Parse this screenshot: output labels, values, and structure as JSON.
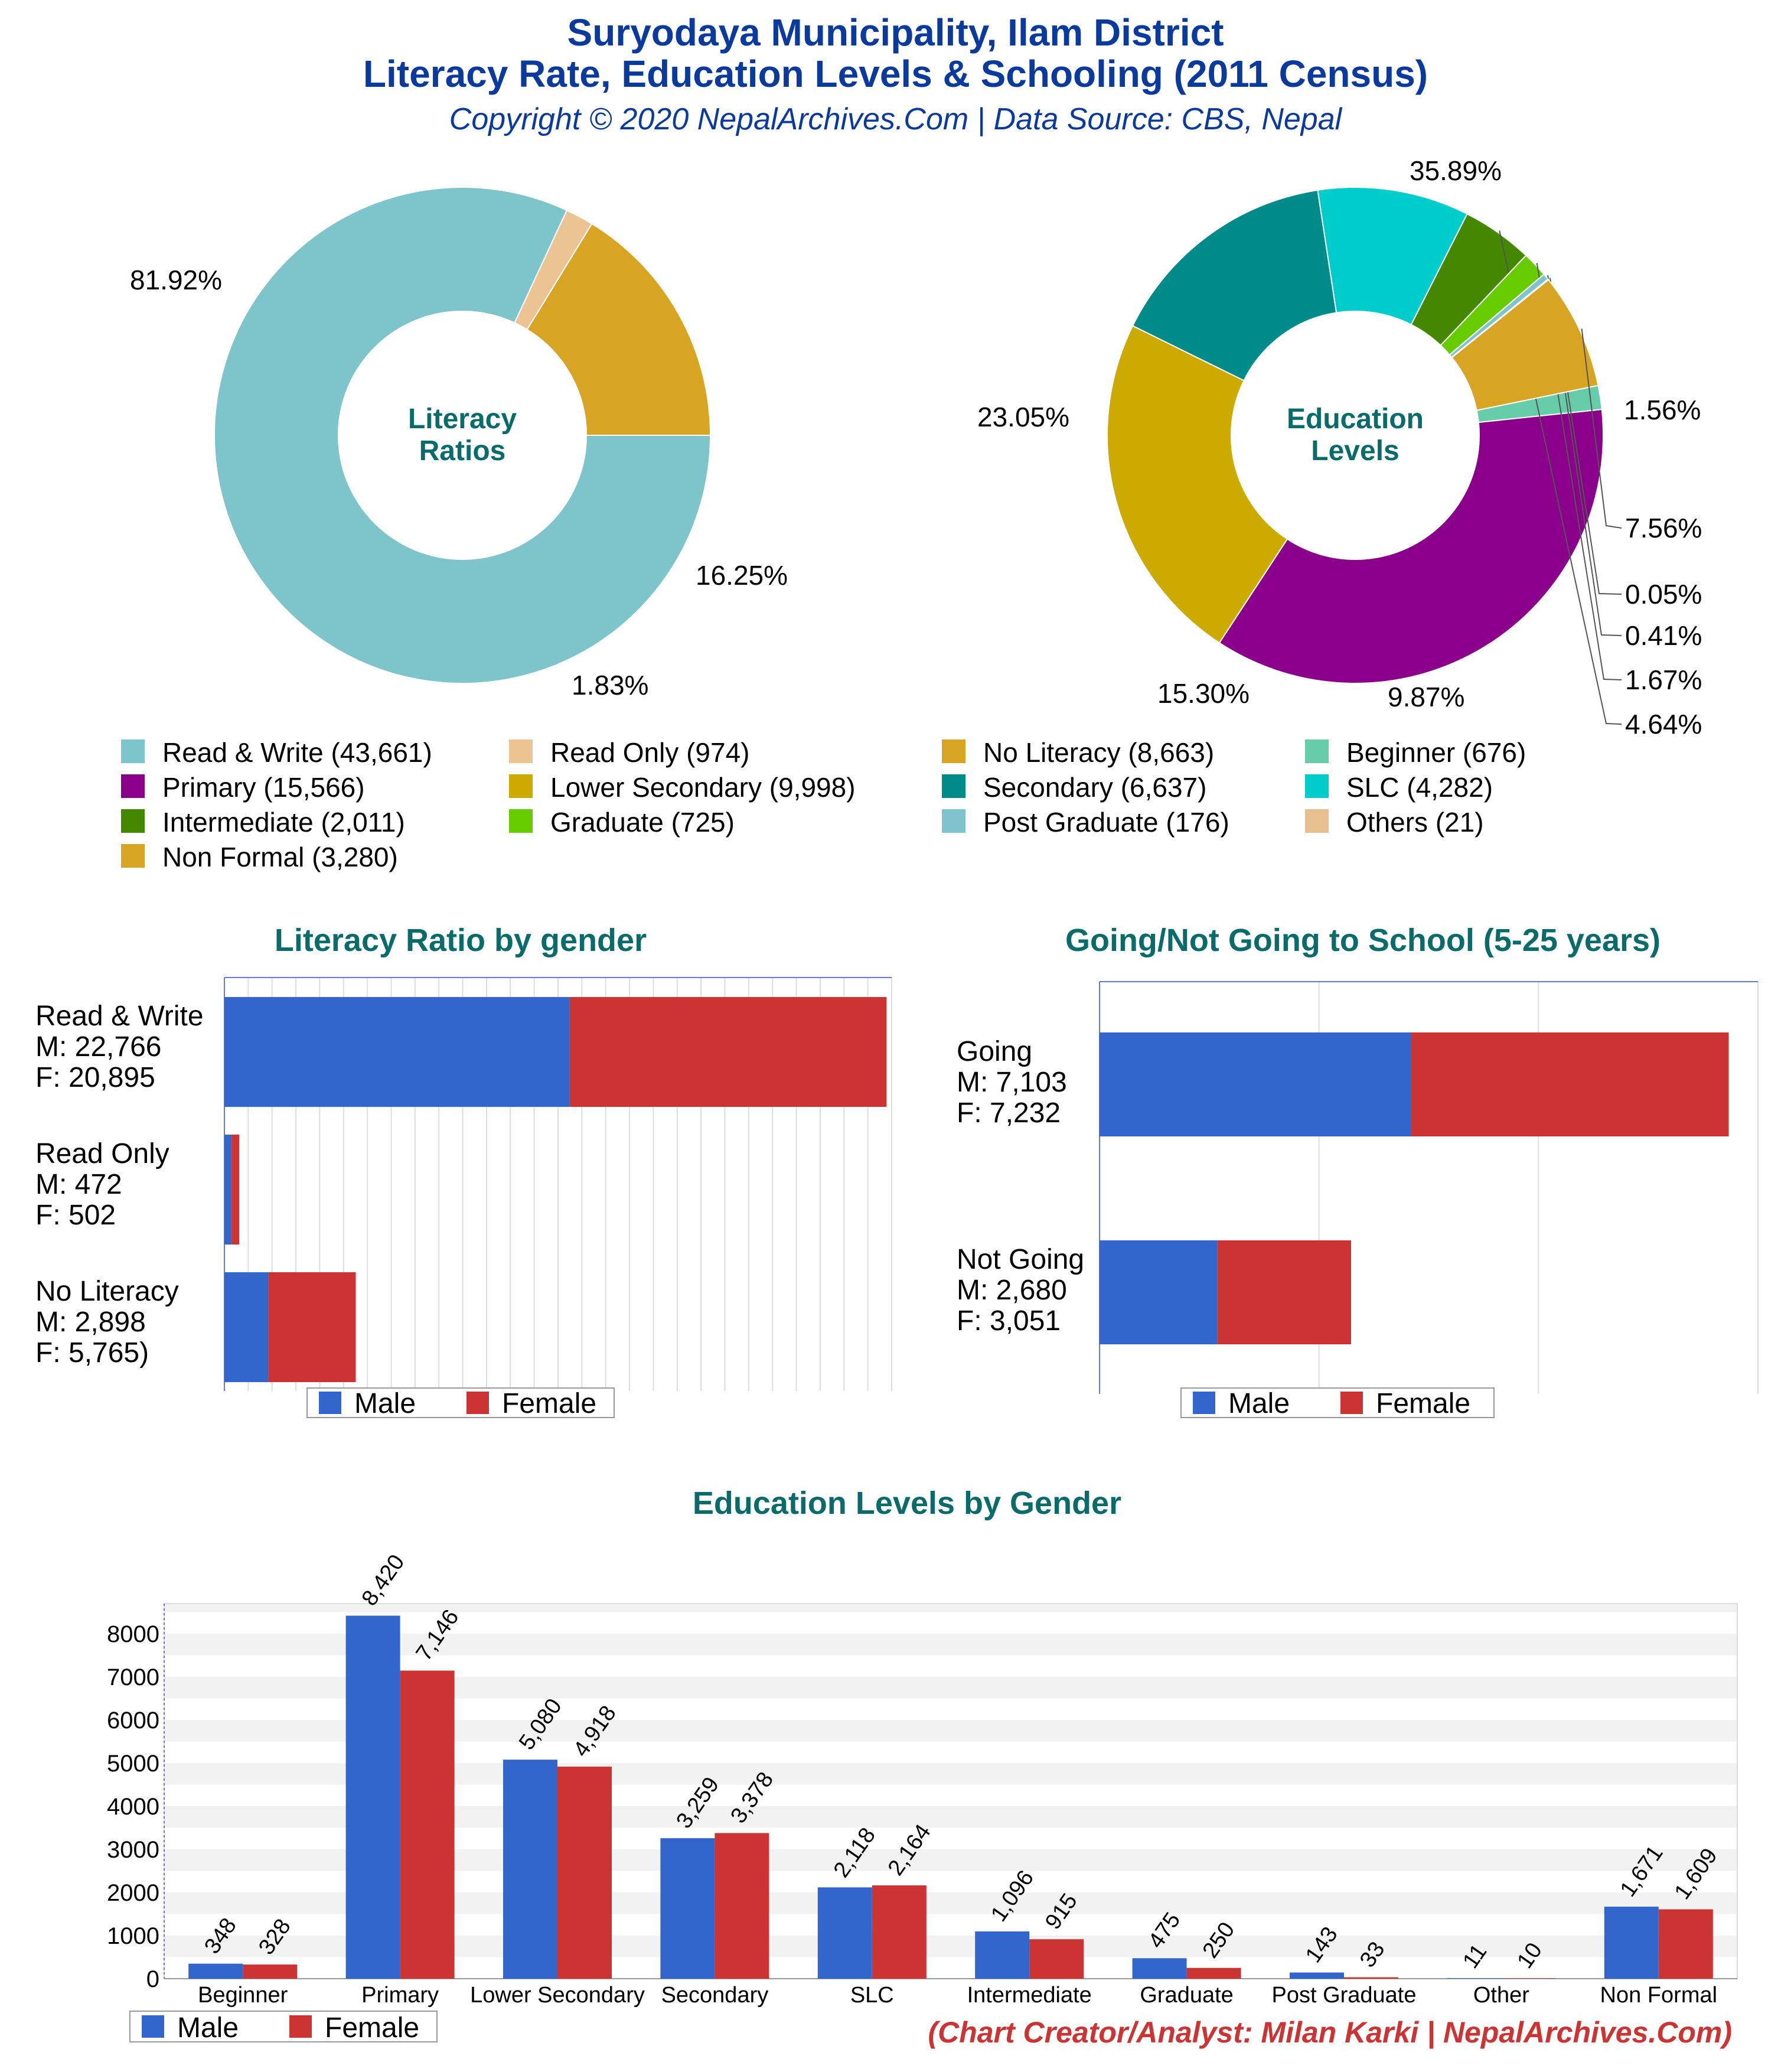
{
  "header": {
    "title_line1": "Suryodaya Municipality, Ilam District",
    "title_line2": "Literacy Rate, Education Levels & Schooling (2011 Census)",
    "subtitle": "Copyright © 2020 NepalArchives.Com | Data Source: CBS, Nepal"
  },
  "credit": "(Chart Creator/Analyst: Milan Karki | NepalArchives.Com)",
  "chart_data": [
    {
      "type": "pie",
      "center_label": [
        "Literacy",
        "Ratios"
      ],
      "slices": [
        {
          "label": "Read & Write",
          "value": 43661,
          "percent_label": "81.92%",
          "color": "#7dc4cb"
        },
        {
          "label": "Read Only",
          "value": 974,
          "percent_label": "1.83%",
          "color": "#ecc393"
        },
        {
          "label": "No Literacy",
          "value": 8663,
          "percent_label": "16.25%",
          "color": "#d8a424"
        }
      ]
    },
    {
      "type": "pie",
      "center_label": [
        "Education",
        "Levels"
      ],
      "slices": [
        {
          "label": "Beginner",
          "value": 676,
          "percent_label": "1.56%",
          "color": "#66ccaa"
        },
        {
          "label": "Primary",
          "value": 15566,
          "percent_label": "35.89%",
          "color": "#8b008b"
        },
        {
          "label": "Lower Secondary",
          "value": 9998,
          "percent_label": "23.05%",
          "color": "#ccaa00"
        },
        {
          "label": "Secondary",
          "value": 6637,
          "percent_label": "15.30%",
          "color": "#008b8b"
        },
        {
          "label": "SLC",
          "value": 4282,
          "percent_label": "9.87%",
          "color": "#00cccc"
        },
        {
          "label": "Intermediate",
          "value": 2011,
          "percent_label": "4.64%",
          "color": "#448800"
        },
        {
          "label": "Graduate",
          "value": 725,
          "percent_label": "1.67%",
          "color": "#66cc00"
        },
        {
          "label": "Post Graduate",
          "value": 176,
          "percent_label": "0.41%",
          "color": "#7fc4cc"
        },
        {
          "label": "Others",
          "value": 21,
          "percent_label": "0.05%",
          "color": "#e8c090"
        },
        {
          "label": "Non Formal",
          "value": 3280,
          "percent_label": "7.56%",
          "color": "#d8a424"
        }
      ]
    },
    {
      "type": "bar",
      "title": "Literacy Ratio by gender",
      "orientation": "horizontal",
      "stacked": true,
      "categories": [
        {
          "lines": [
            "Read & Write",
            "M: 22,766",
            "F: 20,895"
          ]
        },
        {
          "lines": [
            "Read Only",
            "M: 472",
            "F: 502"
          ]
        },
        {
          "lines": [
            "No Literacy",
            "M: 2,898",
            "F: 5,765)"
          ]
        }
      ],
      "series": [
        {
          "name": "Male",
          "values": [
            22766,
            472,
            2898
          ],
          "color": "#3366cc"
        },
        {
          "name": "Female",
          "values": [
            20895,
            502,
            5765
          ],
          "color": "#cc3333"
        }
      ],
      "xlim": [
        0,
        44000
      ]
    },
    {
      "type": "bar",
      "title": "Going/Not Going to School (5-25 years)",
      "orientation": "horizontal",
      "stacked": true,
      "categories": [
        {
          "lines": [
            "Going",
            "M: 7,103",
            "F: 7,232"
          ]
        },
        {
          "lines": [
            "Not Going",
            "M: 2,680",
            "F: 3,051"
          ]
        }
      ],
      "series": [
        {
          "name": "Male",
          "values": [
            7103,
            2680
          ],
          "color": "#3366cc"
        },
        {
          "name": "Female",
          "values": [
            7232,
            3051
          ],
          "color": "#cc3333"
        }
      ],
      "xlim": [
        0,
        15000
      ]
    },
    {
      "type": "bar",
      "title": "Education Levels by Gender",
      "categories": [
        "Beginner",
        "Primary",
        "Lower Secondary",
        "Secondary",
        "SLC",
        "Intermediate",
        "Graduate",
        "Post Graduate",
        "Other",
        "Non Formal"
      ],
      "series": [
        {
          "name": "Male",
          "values": [
            348,
            8420,
            5080,
            3259,
            2118,
            1096,
            475,
            143,
            11,
            1671
          ],
          "labels": [
            "348",
            "8,420",
            "5,080",
            "3,259",
            "2,118",
            "1,096",
            "475",
            "143",
            "11",
            "1,671"
          ],
          "color": "#3366cc"
        },
        {
          "name": "Female",
          "values": [
            328,
            7146,
            4918,
            3378,
            2164,
            915,
            250,
            33,
            10,
            1609
          ],
          "labels": [
            "328",
            "7,146",
            "4,918",
            "3,378",
            "2,164",
            "915",
            "250",
            "33",
            "10",
            "1,609"
          ],
          "color": "#cc3333"
        }
      ],
      "ylim": [
        0,
        8700
      ],
      "yticks": [
        "0",
        "1000",
        "2000",
        "3000",
        "4000",
        "5000",
        "6000",
        "7000",
        "8000"
      ]
    }
  ],
  "legend_main": [
    {
      "text": "Read & Write (43,661)",
      "color": "#7dc4cb"
    },
    {
      "text": "Read Only (974)",
      "color": "#ecc393"
    },
    {
      "text": "No Literacy (8,663)",
      "color": "#d8a424"
    },
    {
      "text": "Beginner (676)",
      "color": "#66ccaa"
    },
    {
      "text": "Primary (15,566)",
      "color": "#8b008b"
    },
    {
      "text": "Lower Secondary (9,998)",
      "color": "#ccaa00"
    },
    {
      "text": "Secondary (6,637)",
      "color": "#008b8b"
    },
    {
      "text": "SLC (4,282)",
      "color": "#00cccc"
    },
    {
      "text": "Intermediate (2,011)",
      "color": "#448800"
    },
    {
      "text": "Graduate (725)",
      "color": "#66cc00"
    },
    {
      "text": "Post Graduate (176)",
      "color": "#7fc4cc"
    },
    {
      "text": "Others (21)",
      "color": "#e8c090"
    },
    {
      "text": "Non Formal (3,280)",
      "color": "#d8a424"
    }
  ],
  "legend_gender": {
    "male": "Male",
    "female": "Female",
    "male_color": "#3366cc",
    "female_color": "#cc3333"
  }
}
